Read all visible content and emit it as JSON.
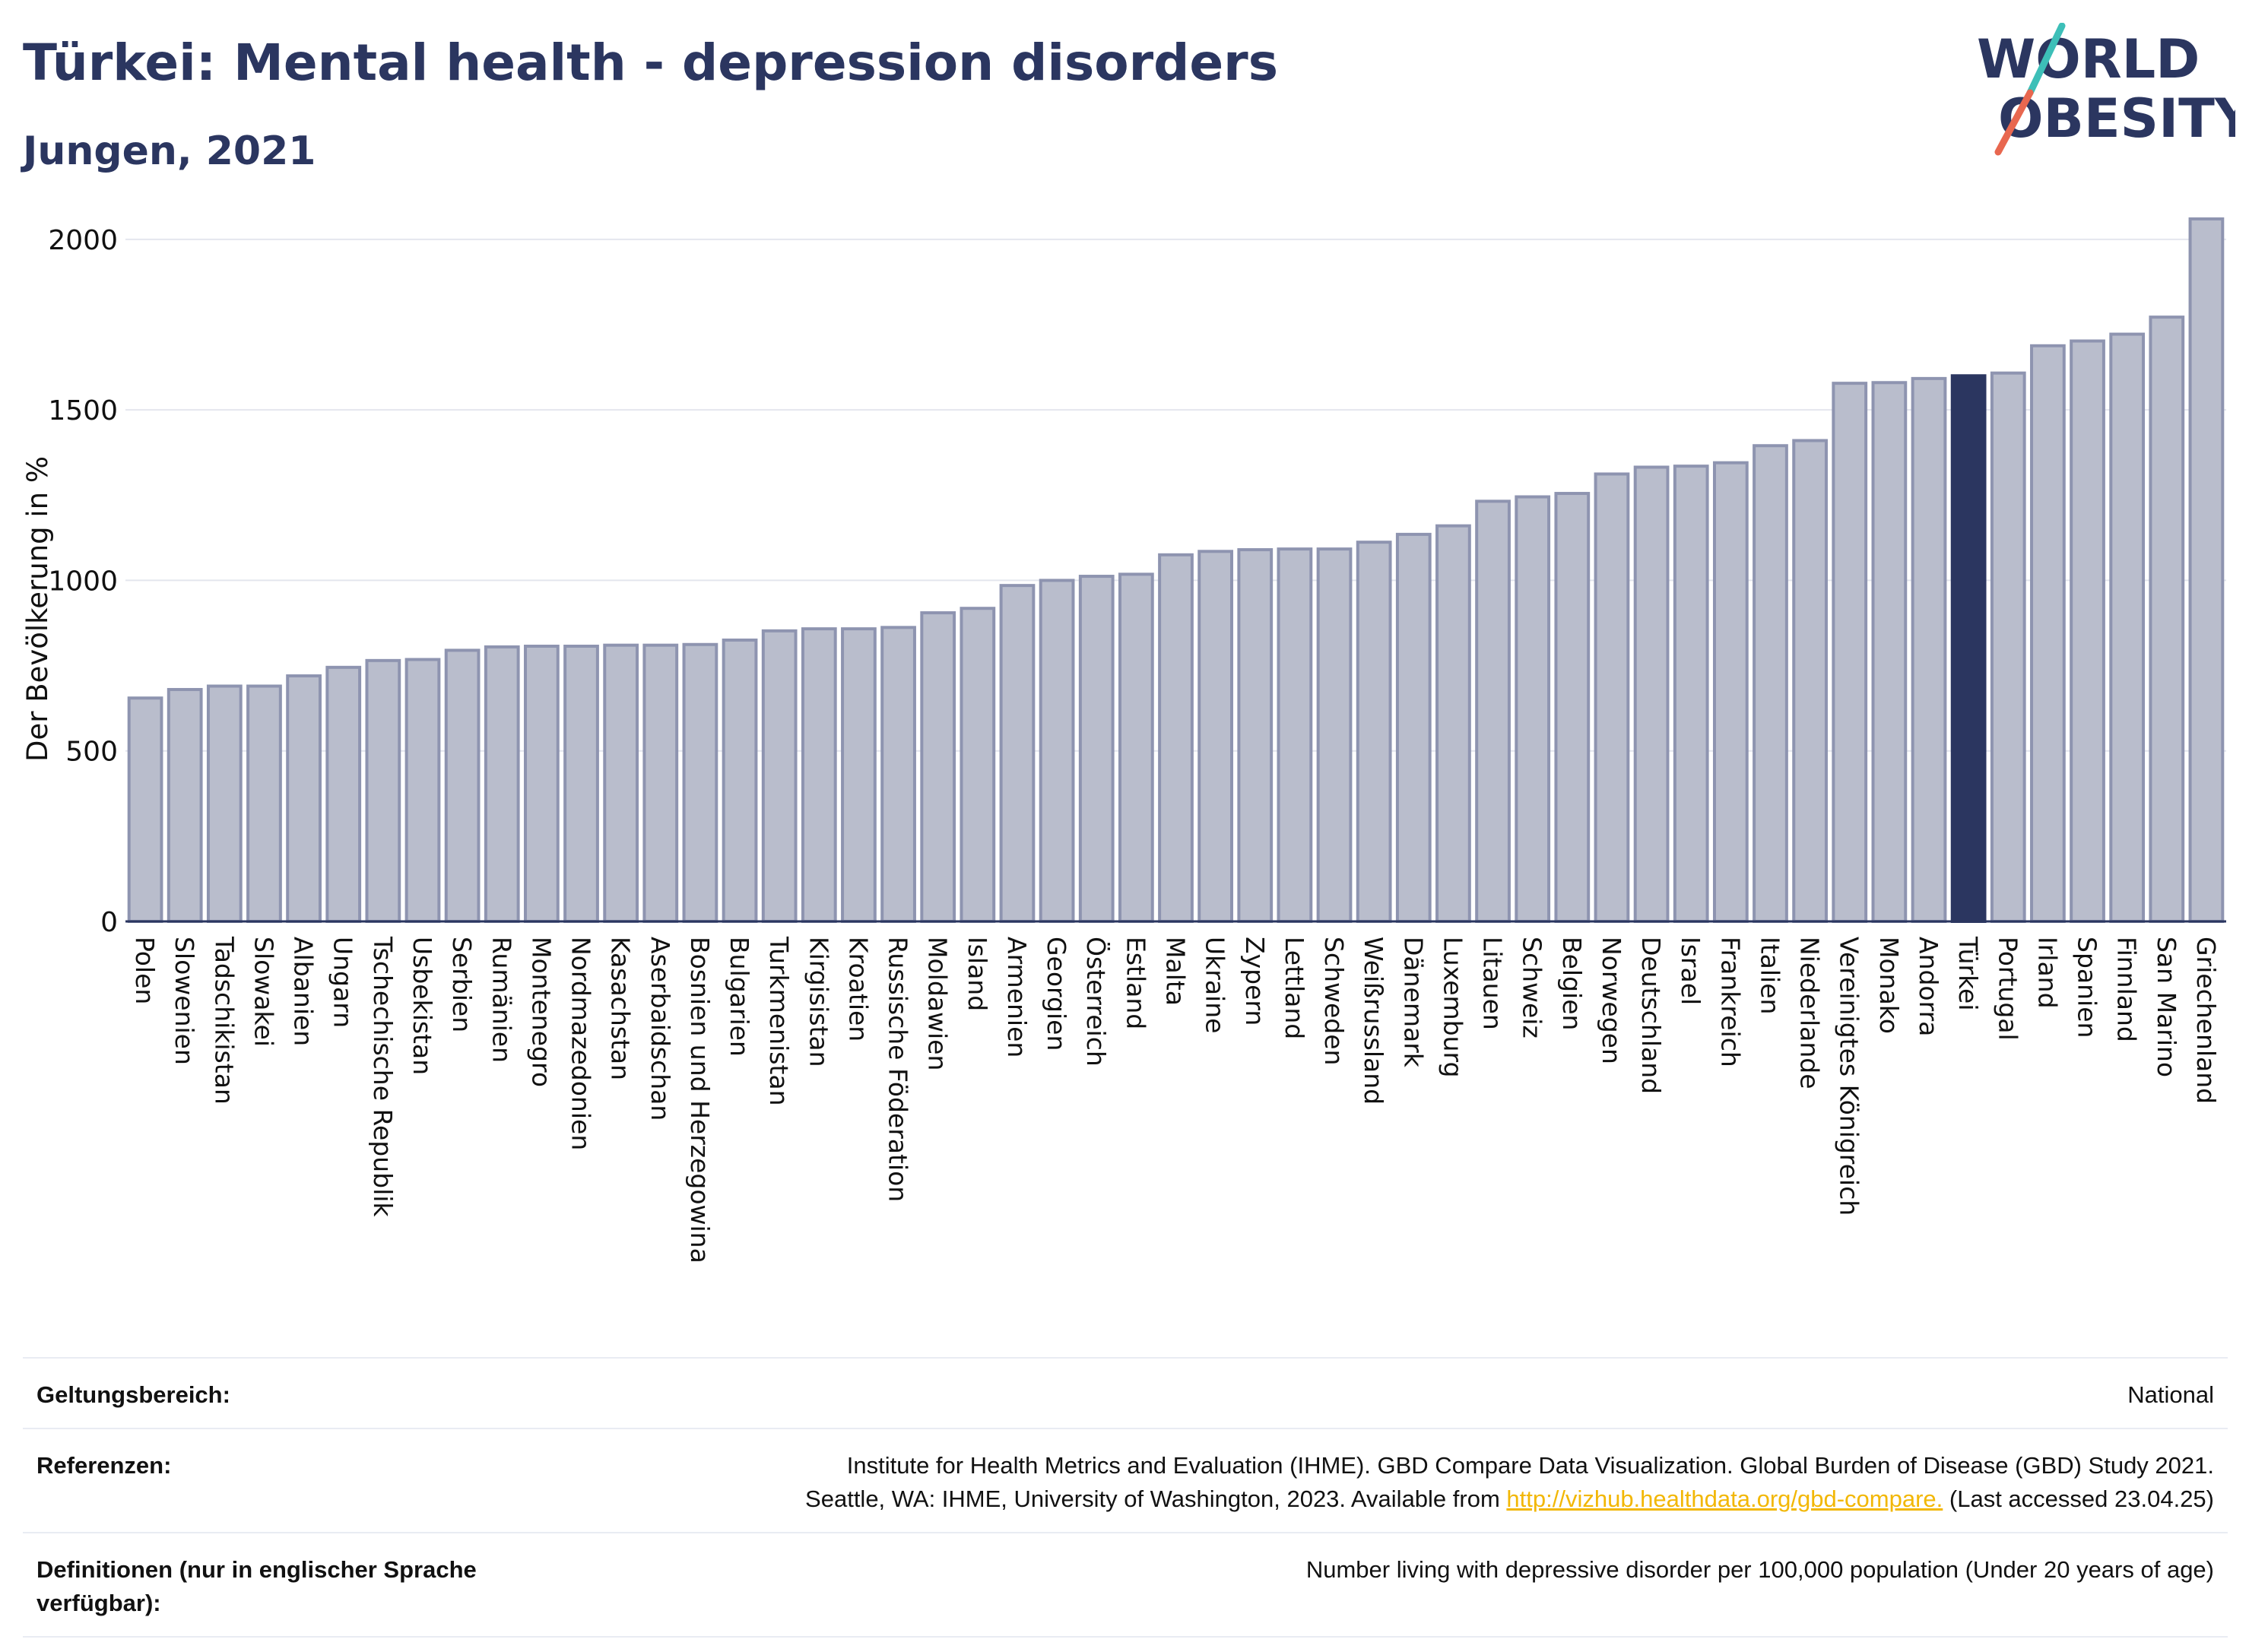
{
  "header": {
    "title": "Türkei: Mental health - depression disorders",
    "subtitle": "Jungen, 2021"
  },
  "logo": {
    "line1": "WORLD",
    "line2": "OBESITY",
    "colors": {
      "text": "#2b3660",
      "slash_top": "#3dbfb8",
      "slash_bottom": "#e8674f"
    }
  },
  "colors": {
    "bar_fill": "#b9bdcc",
    "bar_stroke": "#8e94b0",
    "highlight_fill": "#2b3660",
    "gridline": "#e4e6ee",
    "axis": "#2b3660",
    "link": "#f2b705"
  },
  "chart_data": {
    "type": "bar",
    "ylabel": "Der Bevölkerung in %",
    "ylim": [
      0,
      2100
    ],
    "yticks": [
      0,
      500,
      1000,
      1500,
      2000
    ],
    "highlight": "Türkei",
    "grid": true,
    "categories": [
      "Polen",
      "Slowenien",
      "Tadschikistan",
      "Slowakei",
      "Albanien",
      "Ungarn",
      "Tschechische Republik",
      "Usbekistan",
      "Serbien",
      "Rumänien",
      "Montenegro",
      "Nordmazedonien",
      "Kasachstan",
      "Aserbaidschan",
      "Bosnien und Herzegowina",
      "Bulgarien",
      "Turkmenistan",
      "Kirgisistan",
      "Kroatien",
      "Russische Föderation",
      "Moldawien",
      "Island",
      "Armenien",
      "Georgien",
      "Österreich",
      "Estland",
      "Malta",
      "Ukraine",
      "Zypern",
      "Lettland",
      "Schweden",
      "Weißrussland",
      "Dänemark",
      "Luxemburg",
      "Litauen",
      "Schweiz",
      "Belgien",
      "Norwegen",
      "Deutschland",
      "Israel",
      "Frankreich",
      "Italien",
      "Niederlande",
      "Vereinigtes Königreich",
      "Monako",
      "Andorra",
      "Türkei",
      "Portugal",
      "Irland",
      "Spanien",
      "Finnland",
      "San Marino",
      "Griechenland"
    ],
    "values": [
      655,
      680,
      690,
      690,
      720,
      745,
      765,
      768,
      795,
      805,
      807,
      807,
      810,
      810,
      812,
      825,
      852,
      858,
      858,
      862,
      905,
      918,
      985,
      1000,
      1012,
      1018,
      1075,
      1085,
      1090,
      1092,
      1092,
      1112,
      1135,
      1160,
      1232,
      1245,
      1255,
      1312,
      1332,
      1335,
      1345,
      1395,
      1410,
      1578,
      1580,
      1592,
      1600,
      1608,
      1688,
      1702,
      1722,
      1772,
      2060
    ]
  },
  "info": {
    "scope_label": "Geltungsbereich:",
    "scope_value": "National",
    "ref_label": "Referenzen:",
    "ref_line1": "Institute for Health Metrics and Evaluation (IHME). GBD Compare Data Visualization. Global Burden of Disease (GBD) Study 2021.",
    "ref_line2_pre": "Seattle, WA: IHME, University of Washington, 2023. Available from ",
    "ref_link": "http://vizhub.healthdata.org/gbd-compare.",
    "ref_line2_post": " (Last accessed 23.04.25)",
    "def_label": "Definitionen (nur in englischer Sprache verfügbar):",
    "def_value": "Number living with depressive disorder per 100,000 population (Under 20 years of age)"
  }
}
